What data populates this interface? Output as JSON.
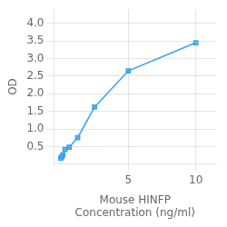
{
  "chart_data": {
    "type": "line",
    "x": [
      0.0,
      0.078,
      0.156,
      0.313,
      0.625,
      1.25,
      2.5,
      5.0,
      10.0
    ],
    "values": [
      0.168,
      0.21,
      0.265,
      0.42,
      0.48,
      0.75,
      1.62,
      2.65,
      3.45
    ],
    "marker": "square",
    "xlabel": "Mouse HINFP\nConcentration (ng/ml)",
    "ylabel": "OD",
    "xlim": [
      -0.5,
      11.5
    ],
    "ylim": [
      0,
      4.4
    ],
    "xticks": [
      5,
      10
    ],
    "yticks": [
      0.5,
      {
        "value": 1.0,
        "label": "1.0"
      },
      1.5,
      {
        "value": 2.0,
        "label": "2.0"
      },
      2.5,
      {
        "value": 3.0,
        "label": "3.0"
      },
      3.5,
      {
        "value": 4.0,
        "label": "4.0"
      }
    ],
    "grid": true
  }
}
